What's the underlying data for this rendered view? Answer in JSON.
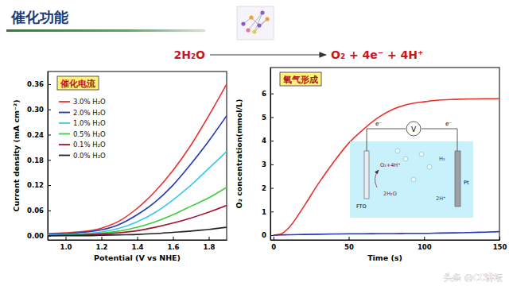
{
  "title": "催化功能",
  "equation": {
    "reactant": "2H₂O",
    "products": "O₂ + 4e⁻ + 4H⁺"
  },
  "watermark": "头条 @CC讲坛",
  "inset": {
    "meter": "V",
    "electron": "e⁻",
    "left_electrode": "FTO",
    "right_electrode": "Pt",
    "anode_reaction": "O₂+4H⁺",
    "anode_reactant": "2H₂O",
    "cathode_product": "H₂",
    "cathode_reactant": "2H⁺"
  },
  "chart_data": [
    {
      "type": "line",
      "title": "催化电流",
      "x_label": "Potential (V vs NHE)",
      "y_label": "Current density (mA cm⁻²)",
      "x": [
        0.9,
        1.0,
        1.1,
        1.2,
        1.3,
        1.4,
        1.5,
        1.6,
        1.7,
        1.8,
        1.9
      ],
      "series": [
        {
          "name": "3.0% H₂O",
          "color": "#e8322d",
          "values": [
            0.005,
            0.007,
            0.01,
            0.018,
            0.035,
            0.065,
            0.105,
            0.155,
            0.215,
            0.285,
            0.36
          ]
        },
        {
          "name": "2.0% H₂O",
          "color": "#2438b8",
          "values": [
            0.003,
            0.005,
            0.008,
            0.014,
            0.027,
            0.05,
            0.08,
            0.12,
            0.17,
            0.225,
            0.285
          ]
        },
        {
          "name": "1.0% H₂O",
          "color": "#36c8ee",
          "values": [
            0.002,
            0.003,
            0.005,
            0.009,
            0.018,
            0.033,
            0.055,
            0.085,
            0.12,
            0.16,
            0.2
          ]
        },
        {
          "name": "0.5% H₂O",
          "color": "#3fcc3f",
          "values": [
            0.001,
            0.002,
            0.003,
            0.006,
            0.011,
            0.02,
            0.033,
            0.05,
            0.07,
            0.09,
            0.115
          ]
        },
        {
          "name": "0.1% H₂O",
          "color": "#a3122e",
          "values": [
            0,
            0.001,
            0.002,
            0.004,
            0.007,
            0.012,
            0.02,
            0.03,
            0.042,
            0.056,
            0.072
          ]
        },
        {
          "name": "0.0% H₂O",
          "color": "#222222",
          "values": [
            0,
            0,
            0,
            0.001,
            0.002,
            0.003,
            0.005,
            0.008,
            0.011,
            0.015,
            0.02
          ]
        }
      ],
      "xlim": [
        0.9,
        1.9
      ],
      "xticks": [
        {
          "value": 1,
          "label": "1.0"
        },
        {
          "value": 1.2,
          "label": "1.2"
        },
        {
          "value": 1.4,
          "label": "1.4"
        },
        {
          "value": 1.6,
          "label": "1.6"
        },
        {
          "value": 1.8,
          "label": "1.8"
        }
      ],
      "ylim": [
        -0.01,
        0.39
      ],
      "yticks": [
        {
          "value": 0,
          "label": "0.00"
        },
        {
          "value": 0.06,
          "label": "0.06"
        },
        {
          "value": 0.12,
          "label": "0.12"
        },
        {
          "value": 0.18,
          "label": "0.18"
        },
        {
          "value": 0.24,
          "label": "0.24"
        },
        {
          "value": 0.3,
          "label": "0.30"
        },
        {
          "value": 0.36,
          "label": "0.36"
        }
      ],
      "grid": false,
      "legend": "upper left"
    },
    {
      "type": "line",
      "title": "氧气形成",
      "x_label": "Time (s)",
      "y_label": "O₂ concentration(mmol/L)",
      "x": [
        0,
        5,
        10,
        20,
        30,
        40,
        50,
        60,
        70,
        80,
        90,
        100,
        110,
        120,
        130,
        140,
        150
      ],
      "series": [
        {
          "color": "#e8322d",
          "values": [
            0,
            0.05,
            0.3,
            1.2,
            2.2,
            3.1,
            3.9,
            4.5,
            5.0,
            5.35,
            5.55,
            5.65,
            5.72,
            5.75,
            5.77,
            5.78,
            5.78
          ]
        },
        {
          "color": "#2438b8",
          "values": [
            0,
            0.01,
            0.02,
            0.03,
            0.04,
            0.05,
            0.06,
            0.06,
            0.07,
            0.07,
            0.08,
            0.08,
            0.09,
            0.1,
            0.11,
            0.13,
            0.15
          ]
        }
      ],
      "xlim": [
        -2,
        150
      ],
      "xticks": [
        0,
        50,
        100,
        150
      ],
      "ylim": [
        -0.2,
        7.1
      ],
      "yticks": [
        0,
        1,
        2,
        3,
        4,
        5,
        6
      ],
      "grid": false
    }
  ]
}
